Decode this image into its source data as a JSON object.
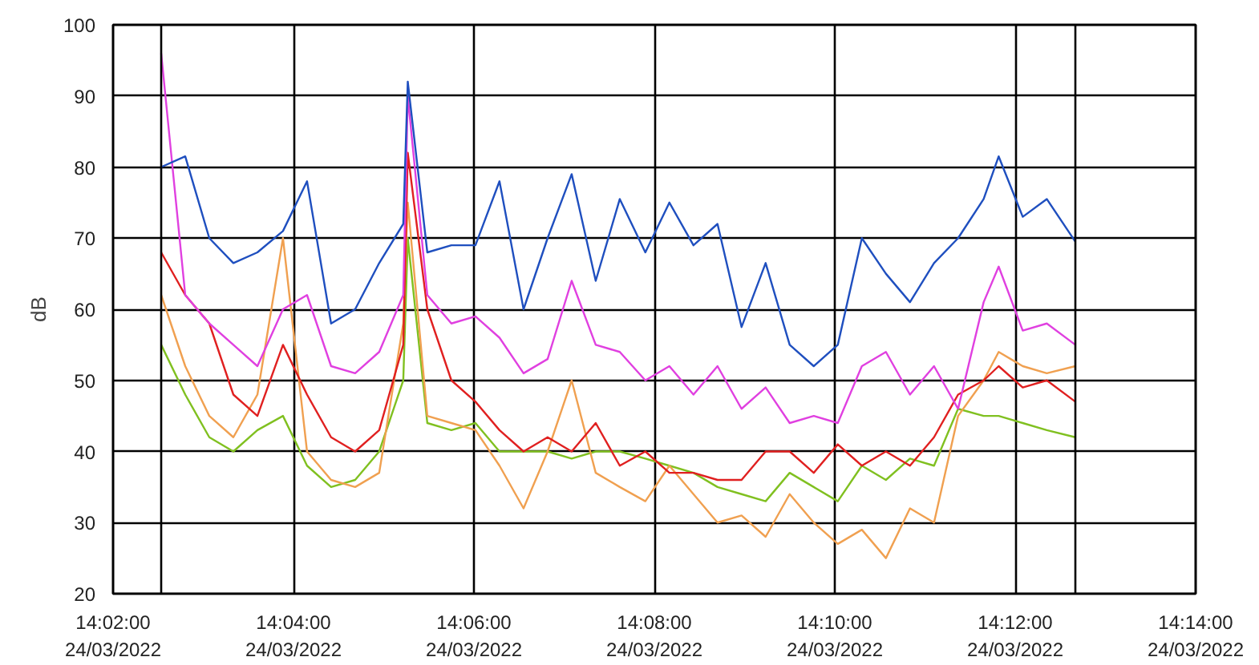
{
  "chart_data": {
    "type": "line",
    "ylabel": "dB",
    "x": [
      "2022-03-24T14:02:32",
      "2022-03-24T14:02:48",
      "2022-03-24T14:03:04",
      "2022-03-24T14:03:20",
      "2022-03-24T14:03:36",
      "2022-03-24T14:03:53",
      "2022-03-24T14:04:09",
      "2022-03-24T14:04:25",
      "2022-03-24T14:04:41",
      "2022-03-24T14:04:57",
      "2022-03-24T14:05:13",
      "2022-03-24T14:05:16",
      "2022-03-24T14:05:29",
      "2022-03-24T14:05:45",
      "2022-03-24T14:06:01",
      "2022-03-24T14:06:17",
      "2022-03-24T14:06:33",
      "2022-03-24T14:06:49",
      "2022-03-24T14:07:05",
      "2022-03-24T14:07:21",
      "2022-03-24T14:07:37",
      "2022-03-24T14:07:54",
      "2022-03-24T14:08:10",
      "2022-03-24T14:08:26",
      "2022-03-24T14:08:42",
      "2022-03-24T14:08:58",
      "2022-03-24T14:09:14",
      "2022-03-24T14:09:30",
      "2022-03-24T14:09:46",
      "2022-03-24T14:10:02",
      "2022-03-24T14:10:18",
      "2022-03-24T14:10:34",
      "2022-03-24T14:10:50",
      "2022-03-24T14:11:06",
      "2022-03-24T14:11:22",
      "2022-03-24T14:11:39",
      "2022-03-24T14:11:49",
      "2022-03-24T14:12:05",
      "2022-03-24T14:12:21",
      "2022-03-24T14:12:40"
    ],
    "series": [
      {
        "color": "#80c020",
        "values": [
          55,
          48,
          42,
          40,
          43,
          45,
          38,
          35,
          36,
          40,
          50,
          70,
          44,
          43,
          44,
          40,
          40,
          40,
          39,
          40,
          40,
          39,
          38,
          37,
          35,
          34,
          33,
          37,
          35,
          33,
          38,
          36,
          39,
          38,
          46,
          45,
          45,
          44,
          43,
          42
        ]
      },
      {
        "color": "#f0a050",
        "values": [
          62,
          52,
          45,
          42,
          48,
          70,
          40,
          36,
          35,
          37,
          58,
          75,
          45,
          44,
          43,
          38,
          32,
          40,
          50,
          37,
          35,
          33,
          38,
          34,
          30,
          31,
          28,
          34,
          30,
          27,
          29,
          25,
          32,
          30,
          45,
          50,
          54,
          52,
          51,
          52
        ]
      },
      {
        "color": "#e02020",
        "values": [
          68,
          62,
          58,
          48,
          45,
          55,
          48,
          42,
          40,
          43,
          55,
          82,
          60,
          50,
          47,
          43,
          40,
          42,
          40,
          44,
          38,
          40,
          37,
          37,
          36,
          36,
          40,
          40,
          37,
          41,
          38,
          40,
          38,
          42,
          48,
          50,
          52,
          49,
          50,
          47
        ]
      },
      {
        "color": "#e040e0",
        "values": [
          96,
          62,
          58,
          55,
          52,
          60,
          62,
          52,
          51,
          54,
          62,
          90,
          62,
          58,
          59,
          56,
          51,
          53,
          64,
          55,
          54,
          50,
          52,
          48,
          52,
          46,
          49,
          44,
          45,
          44,
          52,
          54,
          48,
          52,
          46,
          61,
          66,
          57,
          58,
          55
        ]
      },
      {
        "color": "#1f4fbf",
        "values": [
          80,
          81.5,
          70,
          66.5,
          68,
          71,
          78,
          58,
          60,
          66.5,
          72,
          92,
          68,
          69,
          69,
          78,
          60,
          70,
          79,
          64,
          75.5,
          68,
          75,
          69,
          72,
          57.5,
          66.5,
          55,
          52,
          55,
          70,
          65,
          61,
          66.5,
          70,
          75.5,
          81.5,
          73,
          75.5,
          69.5
        ]
      }
    ],
    "xlim": [
      "2022-03-24T14:02:00",
      "2022-03-24T14:14:00"
    ],
    "xticks": [
      {
        "value": "2022-03-24T14:02:00",
        "label": "14:02:00\n24/03/2022"
      },
      {
        "value": "2022-03-24T14:04:00",
        "label": "14:04:00\n24/03/2022"
      },
      {
        "value": "2022-03-24T14:06:00",
        "label": "14:06:00\n24/03/2022"
      },
      {
        "value": "2022-03-24T14:08:00",
        "label": "14:08:00\n24/03/2022"
      },
      {
        "value": "2022-03-24T14:10:00",
        "label": "14:10:00\n24/03/2022"
      },
      {
        "value": "2022-03-24T14:12:00",
        "label": "14:12:00\n24/03/2022"
      },
      {
        "value": "2022-03-24T14:14:00",
        "label": "14:14:00\n24/03/2022"
      }
    ],
    "ylim": [
      20,
      100
    ],
    "yticks": [
      20,
      30,
      40,
      50,
      60,
      70,
      80,
      90,
      100
    ],
    "ref_lines": [
      {
        "axis": "x",
        "value": "2022-03-24T14:02:32",
        "color": "#000000"
      },
      {
        "axis": "x",
        "value": "2022-03-24T14:12:40",
        "color": "#000000"
      }
    ],
    "grid": true
  }
}
